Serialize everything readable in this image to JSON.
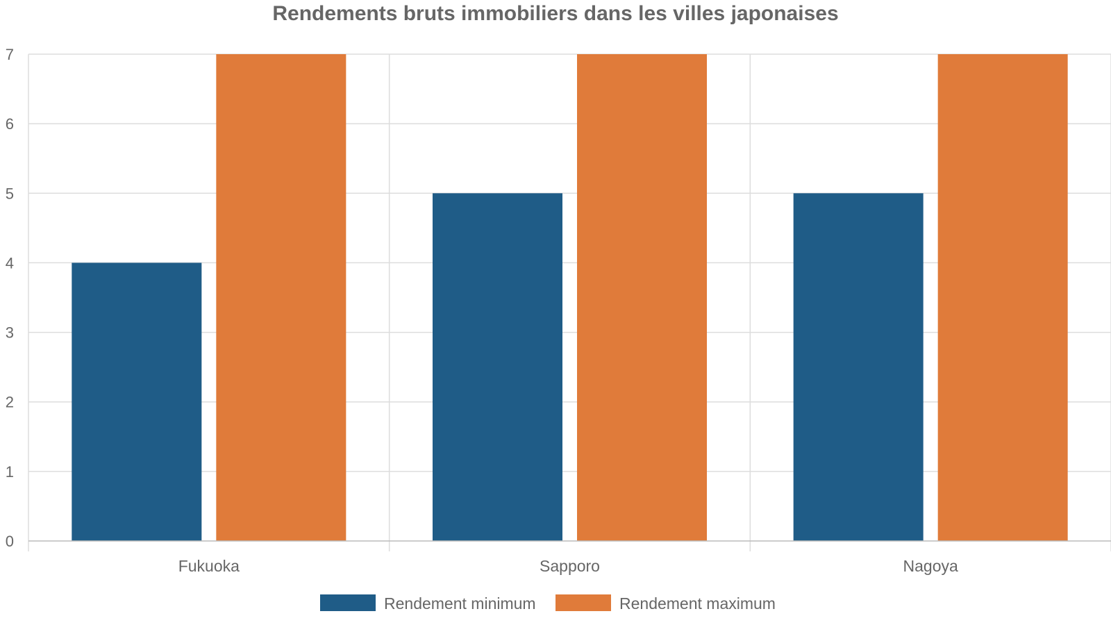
{
  "chart_data": {
    "type": "bar",
    "title": "Rendements bruts immobiliers dans les villes japonaises",
    "xlabel": "",
    "ylabel": "",
    "categories": [
      "Fukuoka",
      "Sapporo",
      "Nagoya"
    ],
    "series": [
      {
        "name": "Rendement minimum",
        "values": [
          4,
          5,
          5
        ],
        "color": "#1f5c87"
      },
      {
        "name": "Rendement maximum",
        "values": [
          7,
          7,
          7
        ],
        "color": "#e07b3a"
      }
    ],
    "ylim": [
      0,
      7
    ],
    "yticks": [
      0,
      1,
      2,
      3,
      4,
      5,
      6,
      7
    ],
    "grid": true,
    "legend": "bottom"
  }
}
